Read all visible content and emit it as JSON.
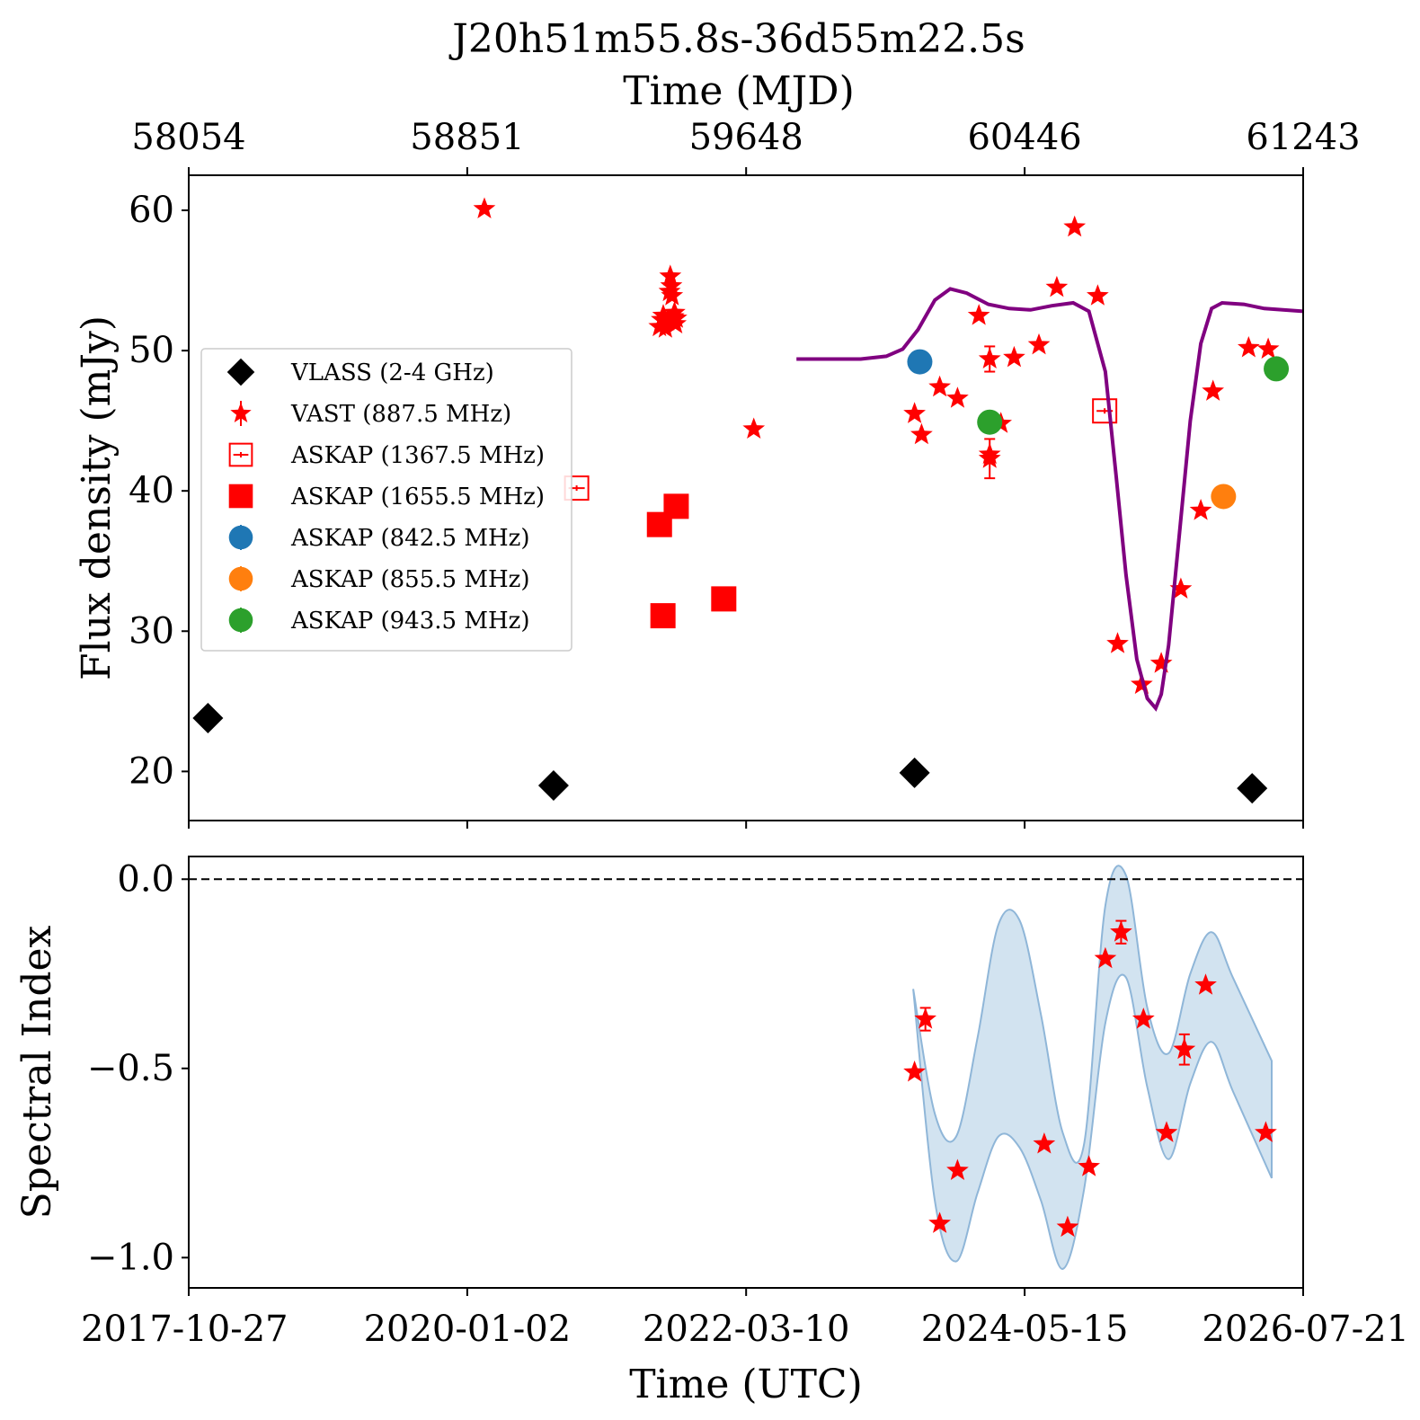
{
  "chart_data": [
    {
      "type": "scatter",
      "title": "J20h51m55.8s-36d55m22.5s",
      "top_axis": {
        "label": "Time (MJD)",
        "ticks": [
          "58054",
          "58851",
          "59648",
          "60446",
          "61243"
        ]
      },
      "xlim": [
        "2017-10-27",
        "2026-07-21"
      ],
      "ylabel": "Flux density (mJy)",
      "ylim": [
        16.5,
        62.5
      ],
      "yticks": [
        "20",
        "30",
        "40",
        "50",
        "60"
      ],
      "grid": false,
      "legend_position": "center-left",
      "series": [
        {
          "name": "VLASS (2-4 GHz)",
          "marker": "diamond",
          "color": "#000000",
          "x": [
            "2017-12-21",
            "2020-09-05",
            "2023-07-05",
            "2026-02-25"
          ],
          "y": [
            23.8,
            19.0,
            19.9,
            18.8
          ]
        },
        {
          "name": "VAST (887.5 MHz)",
          "marker": "star",
          "color": "#ff0000",
          "x": [
            "2020-02-20",
            "2021-07-05",
            "2021-07-12",
            "2021-07-16",
            "2021-07-22",
            "2021-07-28",
            "2021-08-03",
            "2021-08-05",
            "2021-08-08",
            "2021-08-10",
            "2021-08-14",
            "2021-08-17",
            "2021-08-20",
            "2021-08-22",
            "2022-04-01",
            "2023-07-05",
            "2023-07-25",
            "2023-09-15",
            "2023-11-05",
            "2024-01-05",
            "2024-02-05",
            "2024-02-05",
            "2024-02-05",
            "2024-03-08",
            "2024-04-15",
            "2024-06-25",
            "2024-08-15",
            "2024-10-05",
            "2024-12-10",
            "2025-02-05",
            "2025-04-15",
            "2025-06-10",
            "2025-08-05",
            "2025-10-01",
            "2025-11-05",
            "2026-02-15",
            "2026-04-12"
          ],
          "y": [
            60.1,
            51.7,
            52.2,
            52.5,
            51.6,
            52.1,
            54.2,
            55.3,
            54.6,
            53.9,
            52.4,
            52.7,
            51.9,
            52.3,
            44.4,
            45.5,
            44.0,
            47.4,
            46.6,
            52.5,
            49.4,
            42.3,
            42.6,
            44.8,
            49.5,
            50.4,
            54.5,
            58.8,
            53.9,
            29.1,
            26.2,
            27.7,
            33.0,
            38.6,
            47.1,
            50.2,
            50.1
          ],
          "yerr": [
            0.3,
            0.3,
            0.3,
            0.3,
            0.3,
            0.3,
            0.3,
            0.3,
            0.3,
            0.3,
            0.3,
            0.3,
            0.3,
            0.3,
            0.3,
            0.3,
            0.3,
            0.3,
            0.3,
            0.4,
            0.9,
            1.4,
            0.4,
            0.3,
            0.3,
            0.3,
            0.3,
            0.3,
            0.3,
            0.3,
            0.3,
            0.3,
            0.3,
            0.3,
            0.3,
            0.3,
            0.3
          ]
        },
        {
          "name": "ASKAP (1367.5 MHz)",
          "marker": "open-square",
          "color": "#ff0000",
          "x": [
            "2020-11-10",
            "2024-12-30"
          ],
          "y": [
            40.2,
            45.7
          ]
        },
        {
          "name": "ASKAP (1655.5 MHz)",
          "marker": "square",
          "color": "#ff0000",
          "x": [
            "2021-07-05",
            "2021-07-15",
            "2021-08-22",
            "2022-01-05"
          ],
          "y": [
            37.6,
            31.1,
            38.9,
            32.3
          ]
        },
        {
          "name": "ASKAP (842.5 MHz)",
          "marker": "circle",
          "color": "#1f77b4",
          "x": [
            "2023-07-20"
          ],
          "y": [
            49.2
          ]
        },
        {
          "name": "ASKAP (855.5 MHz)",
          "marker": "circle",
          "color": "#ff7f0e",
          "x": [
            "2025-12-05"
          ],
          "y": [
            39.6
          ]
        },
        {
          "name": "ASKAP (943.5 MHz)",
          "marker": "circle",
          "color": "#2ca02c",
          "x": [
            "2024-02-05",
            "2026-05-05"
          ],
          "y": [
            44.9,
            48.7
          ]
        },
        {
          "marker": "line",
          "color": "#800080",
          "x": [
            "2022-08-01",
            "2022-11-01",
            "2023-02-01",
            "2023-04-15",
            "2023-06-01",
            "2023-07-15",
            "2023-09-01",
            "2023-10-15",
            "2023-12-01",
            "2024-02-01",
            "2024-04-01",
            "2024-06-01",
            "2024-08-01",
            "2024-10-01",
            "2024-11-15",
            "2025-01-01",
            "2025-02-01",
            "2025-03-01",
            "2025-04-01",
            "2025-05-01",
            "2025-05-25",
            "2025-06-10",
            "2025-07-01",
            "2025-08-01",
            "2025-09-01",
            "2025-10-01",
            "2025-11-01",
            "2025-12-01",
            "2026-02-01",
            "2026-04-01",
            "2026-07-21"
          ],
          "y": [
            49.4,
            49.4,
            49.4,
            49.6,
            50.1,
            51.5,
            53.6,
            54.4,
            54.1,
            53.3,
            53.0,
            52.9,
            53.2,
            53.4,
            52.8,
            48.5,
            41.0,
            34.0,
            28.0,
            25.2,
            24.5,
            25.5,
            29.0,
            37.0,
            45.0,
            50.5,
            53.0,
            53.4,
            53.3,
            53.0,
            52.8
          ]
        }
      ]
    },
    {
      "type": "scatter",
      "xlim": [
        "2017-10-27",
        "2026-07-21"
      ],
      "xticks": [
        "2017-10-27",
        "2020-01-02",
        "2022-03-10",
        "2024-05-15",
        "2026-07-21"
      ],
      "xlabel": "Time (UTC)",
      "ylabel": "Spectral Index",
      "ylim": [
        -1.08,
        0.06
      ],
      "yticks": [
        "0.0",
        "−0.5",
        "−1.0"
      ],
      "reference_line_y": 0.0,
      "grid": false,
      "series": [
        {
          "marker": "star",
          "color": "#ff0000",
          "x": [
            "2023-07-05",
            "2023-08-05",
            "2023-09-15",
            "2023-11-05",
            "2024-07-10",
            "2024-09-15",
            "2024-11-15",
            "2025-01-01",
            "2025-02-15",
            "2025-04-20",
            "2025-06-25",
            "2025-08-15",
            "2025-10-15",
            "2026-04-05"
          ],
          "y": [
            -0.51,
            -0.37,
            -0.91,
            -0.77,
            -0.7,
            -0.92,
            -0.76,
            -0.21,
            -0.14,
            -0.37,
            -0.67,
            -0.45,
            -0.28,
            -0.67
          ],
          "yerr": [
            0.02,
            0.03,
            0.02,
            0.02,
            0.02,
            0.02,
            0.02,
            0.02,
            0.03,
            0.02,
            0.02,
            0.04,
            0.02,
            0.02
          ]
        },
        {
          "marker": "band",
          "color": "#a6c8e2",
          "x": [
            "2023-07-01",
            "2023-09-01",
            "2023-11-01",
            "2024-01-01",
            "2024-03-01",
            "2024-05-01",
            "2024-07-01",
            "2024-09-01",
            "2024-11-01",
            "2025-01-01",
            "2025-03-01",
            "2025-05-01",
            "2025-07-01",
            "2025-09-01",
            "2025-11-01",
            "2026-01-01",
            "2026-04-22"
          ],
          "upper": [
            -0.29,
            -0.62,
            -0.68,
            -0.42,
            -0.12,
            -0.11,
            -0.36,
            -0.67,
            -0.7,
            -0.07,
            0.01,
            -0.34,
            -0.46,
            -0.25,
            -0.14,
            -0.26,
            -0.48
          ],
          "lower": [
            -0.29,
            -0.85,
            -1.01,
            -0.83,
            -0.68,
            -0.71,
            -0.85,
            -1.03,
            -0.82,
            -0.38,
            -0.26,
            -0.55,
            -0.74,
            -0.54,
            -0.43,
            -0.56,
            -0.79
          ]
        }
      ]
    }
  ]
}
